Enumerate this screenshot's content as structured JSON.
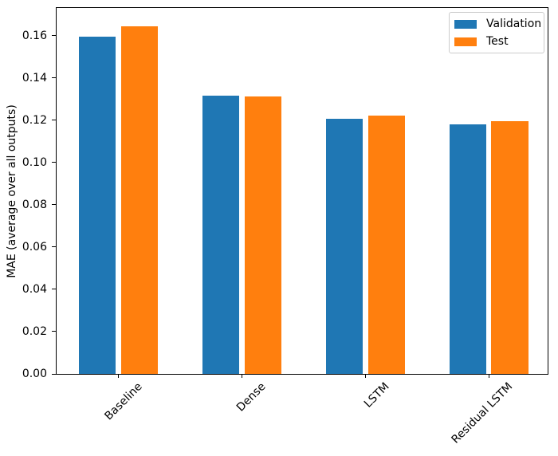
{
  "figure": {
    "background": "#ffffff",
    "spine_color": "#000000"
  },
  "chart_data": {
    "type": "bar",
    "title": "",
    "xlabel": "",
    "ylabel": "MAE (average over all outputs)",
    "categories": [
      "Baseline",
      "Dense",
      "LSTM",
      "Residual LSTM"
    ],
    "series": [
      {
        "name": "Validation",
        "color": "#1f77b4",
        "values": [
          0.1598,
          0.1318,
          0.1206,
          0.1183
        ]
      },
      {
        "name": "Test",
        "color": "#ff7f0e",
        "values": [
          0.1645,
          0.1314,
          0.1221,
          0.1195
        ]
      }
    ],
    "y_ticks": [
      0.0,
      0.02,
      0.04,
      0.06,
      0.08,
      0.1,
      0.12,
      0.14,
      0.16
    ],
    "y_tick_labels": [
      "0.00",
      "0.02",
      "0.04",
      "0.06",
      "0.08",
      "0.10",
      "0.12",
      "0.14",
      "0.16"
    ],
    "ylim": [
      0,
      0.1732
    ],
    "xlim": [
      -0.5,
      3.475
    ],
    "bar_width": 0.3,
    "bar_offset": 0.17,
    "x_tick_rotation": 45,
    "grid": false,
    "legend_position": "upper right"
  }
}
